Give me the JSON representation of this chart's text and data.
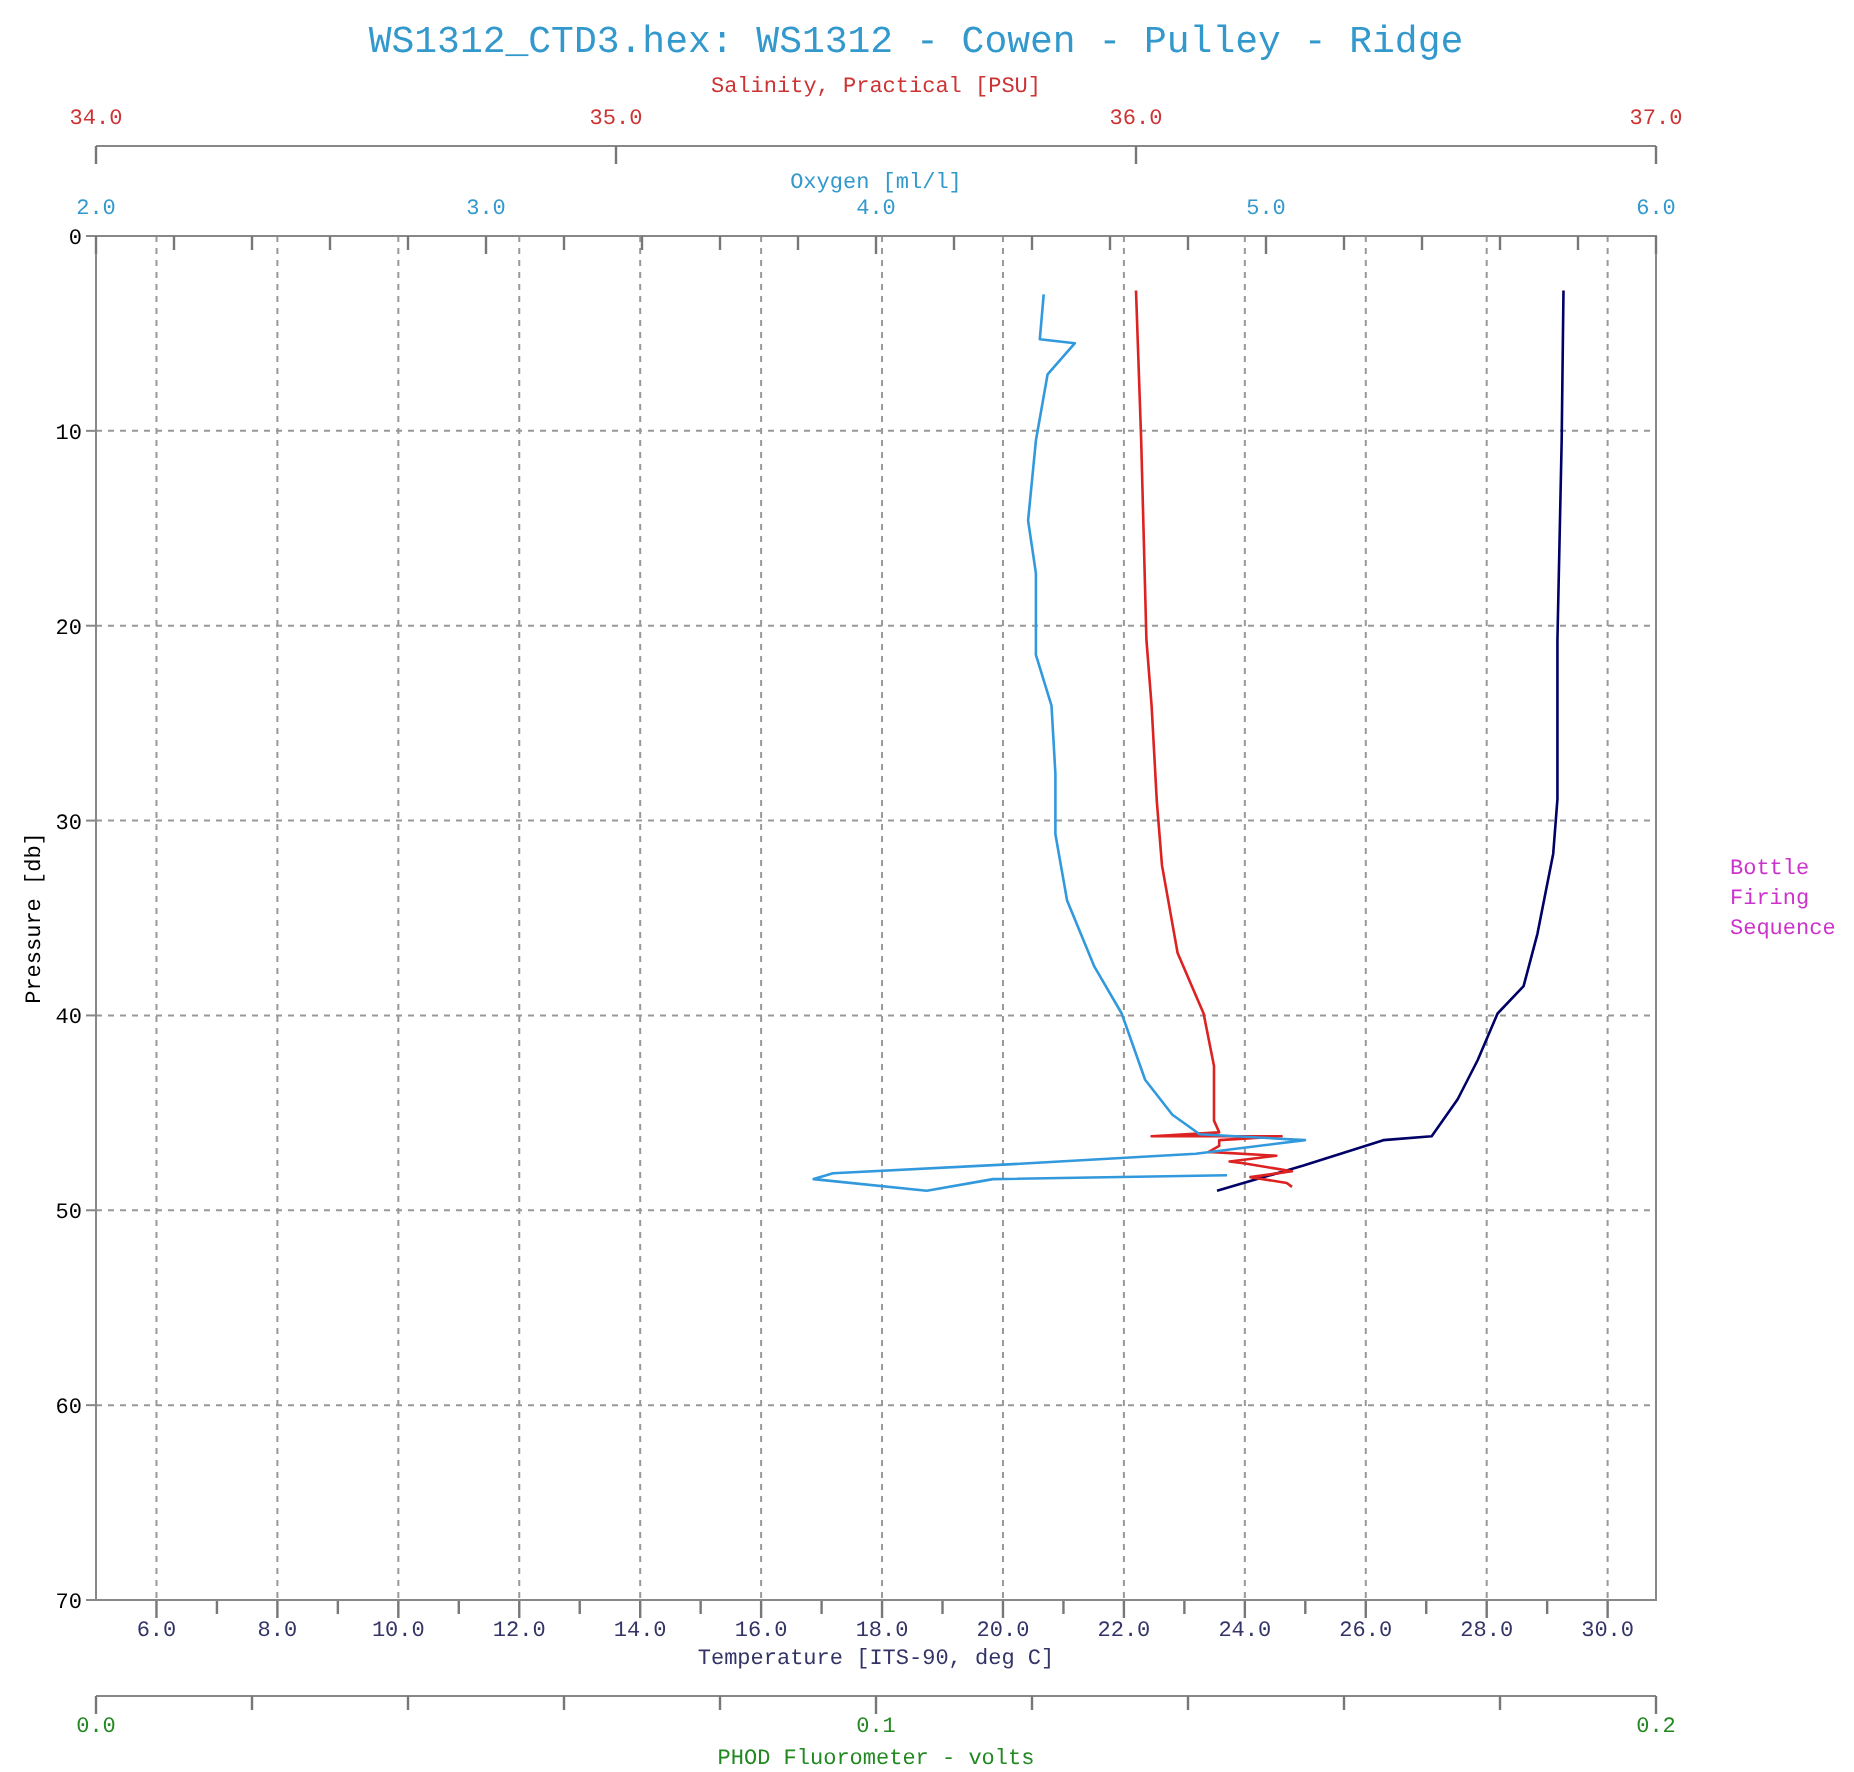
{
  "chart_data": [
    {
      "type": "line",
      "title": "WS1312_CTD3.hex: WS1312 - Cowen - Pulley - Ridge",
      "orientation": "horizontal",
      "ylabel": "Pressure [db]",
      "xlabel": "Temperature [ITS-90, deg C]",
      "x2label": "Salinity, Practical [PSU]",
      "ylim": [
        70,
        0
      ],
      "yticks": [
        0,
        10,
        20,
        30,
        40,
        50,
        60,
        70
      ],
      "xlim": [
        5.0,
        30.8
      ],
      "xticks": [
        {
          "value": 6,
          "label": "6.0"
        },
        {
          "value": 7,
          "label": null
        },
        {
          "value": 8,
          "label": "8.0"
        },
        {
          "value": 9,
          "label": null
        },
        {
          "value": 10,
          "label": "10.0"
        },
        {
          "value": 11,
          "label": null
        },
        {
          "value": 12,
          "label": "12.0"
        },
        {
          "value": 13,
          "label": null
        },
        {
          "value": 14,
          "label": "14.0"
        },
        {
          "value": 15,
          "label": null
        },
        {
          "value": 16,
          "label": "16.0"
        },
        {
          "value": 17,
          "label": null
        },
        {
          "value": 18,
          "label": "18.0"
        },
        {
          "value": 19,
          "label": null
        },
        {
          "value": 20,
          "label": "20.0"
        },
        {
          "value": 21,
          "label": null
        },
        {
          "value": 22,
          "label": "22.0"
        },
        {
          "value": 23,
          "label": null
        },
        {
          "value": 24,
          "label": "24.0"
        },
        {
          "value": 25,
          "label": null
        },
        {
          "value": 26,
          "label": "26.0"
        },
        {
          "value": 27,
          "label": null
        },
        {
          "value": 28,
          "label": "28.0"
        },
        {
          "value": 29,
          "label": null
        },
        {
          "value": 30,
          "label": "30.0"
        }
      ],
      "x2lim": [
        34.0,
        37.0
      ],
      "x2ticks": [
        {
          "value": 34,
          "label": "34.0"
        },
        {
          "value": 35,
          "label": "35.0"
        },
        {
          "value": 36,
          "label": "36.0"
        },
        {
          "value": 37,
          "label": "37.0"
        }
      ],
      "grid": true,
      "line_style": "solid",
      "marker": "none",
      "annotations": [
        "Bottle Firing Sequence"
      ],
      "series": [
        {
          "color": "#000066",
          "x": [
            2.8,
            10.5,
            20.7,
            28.9,
            31.7,
            35.8,
            38.5,
            39.9,
            42.3,
            44.3,
            46.2,
            46.4,
            47.7,
            49.0
          ],
          "values": [
            29.27,
            29.24,
            29.17,
            29.17,
            29.1,
            28.84,
            28.61,
            28.18,
            27.85,
            27.52,
            27.09,
            26.29,
            24.97,
            23.54
          ]
        },
        {
          "color": "#dd2222",
          "axis": "x2",
          "x": [
            2.8,
            10.5,
            15.6,
            20.7,
            24.1,
            29.0,
            32.3,
            36.8,
            39.9,
            42.6,
            45.4,
            46.0,
            46.2,
            46.2,
            46.4,
            46.7,
            47.0,
            47.2,
            47.5,
            47.6,
            48.0,
            48.3,
            48.6,
            48.8
          ],
          "values": [
            36.0,
            36.01,
            36.015,
            36.02,
            36.03,
            36.04,
            36.05,
            36.08,
            36.13,
            36.15,
            36.15,
            36.16,
            36.03,
            36.28,
            36.16,
            36.16,
            36.14,
            36.27,
            36.18,
            36.21,
            36.3,
            36.22,
            36.29,
            36.3
          ]
        }
      ]
    },
    {
      "type": "line",
      "orientation": "horizontal",
      "tick_labels": "x",
      "xlabel": "PHOD Fluorometer - volts",
      "x2label": "Oxygen [ml/l]",
      "ylim": [
        70,
        0
      ],
      "xlim": [
        0.0,
        0.2
      ],
      "xticks": [
        {
          "value": 0,
          "label": "0.0"
        },
        {
          "value": 0.02,
          "label": null
        },
        {
          "value": 0.04,
          "label": null
        },
        {
          "value": 0.06,
          "label": null
        },
        {
          "value": 0.08,
          "label": null
        },
        {
          "value": 0.1,
          "label": "0.1"
        },
        {
          "value": 0.12,
          "label": null
        },
        {
          "value": 0.14,
          "label": null
        },
        {
          "value": 0.16,
          "label": null
        },
        {
          "value": 0.18,
          "label": null
        },
        {
          "value": 0.2,
          "label": "0.2"
        }
      ],
      "x2lim": [
        2.0,
        6.0
      ],
      "x2ticks": [
        {
          "value": 2,
          "label": "2.0"
        },
        {
          "value": 2.2,
          "label": null
        },
        {
          "value": 2.4,
          "label": null
        },
        {
          "value": 2.6,
          "label": null
        },
        {
          "value": 2.8,
          "label": null
        },
        {
          "value": 3,
          "label": "3.0"
        },
        {
          "value": 3.2,
          "label": null
        },
        {
          "value": 3.4,
          "label": null
        },
        {
          "value": 3.6,
          "label": null
        },
        {
          "value": 3.8,
          "label": null
        },
        {
          "value": 4,
          "label": "4.0"
        },
        {
          "value": 4.2,
          "label": null
        },
        {
          "value": 4.4,
          "label": null
        },
        {
          "value": 4.6,
          "label": null
        },
        {
          "value": 4.8,
          "label": null
        },
        {
          "value": 5,
          "label": "5.0"
        },
        {
          "value": 5.2,
          "label": null
        },
        {
          "value": 5.4,
          "label": null
        },
        {
          "value": 5.6,
          "label": null
        },
        {
          "value": 5.8,
          "label": null
        },
        {
          "value": 6,
          "label": "6.0"
        }
      ],
      "line_style": "solid",
      "marker": "none",
      "series": [
        {
          "color": "#3399dd",
          "axis": "x2",
          "x": [
            3.0,
            5.3,
            5.5,
            7.1,
            10.5,
            14.6,
            17.3,
            21.5,
            24.1,
            27.6,
            30.7,
            34.1,
            37.5,
            39.9,
            43.3,
            45.1,
            46.1,
            46.4,
            47.1,
            47.6,
            48.1,
            48.4,
            49.0,
            48.4,
            48.2
          ],
          "values": [
            4.43,
            4.42,
            4.51,
            4.44,
            4.41,
            4.39,
            4.41,
            4.41,
            4.45,
            4.46,
            4.46,
            4.49,
            4.56,
            4.63,
            4.69,
            4.76,
            4.83,
            5.1,
            4.82,
            4.38,
            3.89,
            3.84,
            4.13,
            4.3,
            4.9
          ]
        }
      ]
    }
  ]
}
